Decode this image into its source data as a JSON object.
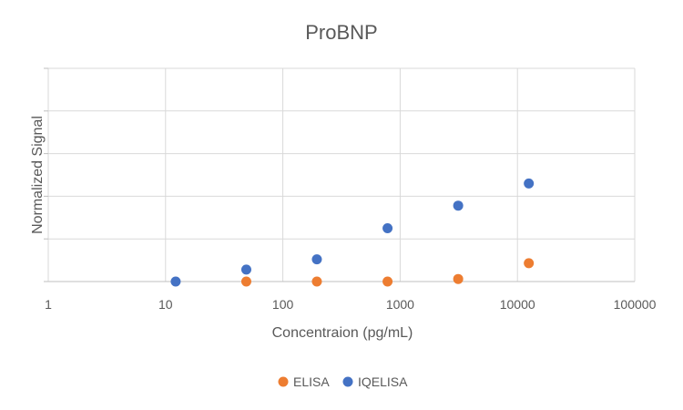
{
  "chart_data": {
    "type": "scatter",
    "title": "ProBNP",
    "xlabel": "Concentraion (pg/mL)",
    "ylabel": "Normalized Signal",
    "x_scale": "log",
    "xlim": [
      1,
      100000
    ],
    "x_ticks": [
      "1",
      "10",
      "100",
      "1000",
      "10000",
      "100000"
    ],
    "ylim": [
      0,
      5
    ],
    "grid": true,
    "legend_position": "bottom",
    "series": [
      {
        "name": "ELISA",
        "color": "#ED7D31",
        "points": [
          {
            "x": 48.8,
            "y": 0.0
          },
          {
            "x": 195,
            "y": 0.0
          },
          {
            "x": 781,
            "y": 0.0
          },
          {
            "x": 3125,
            "y": 0.06
          },
          {
            "x": 12500,
            "y": 0.43
          }
        ]
      },
      {
        "name": "IQELISA",
        "color": "#4472C4",
        "points": [
          {
            "x": 12.2,
            "y": 0.0
          },
          {
            "x": 48.8,
            "y": 0.28
          },
          {
            "x": 195,
            "y": 0.52
          },
          {
            "x": 781,
            "y": 1.25
          },
          {
            "x": 3125,
            "y": 1.78
          },
          {
            "x": 12500,
            "y": 2.3
          }
        ]
      }
    ]
  }
}
